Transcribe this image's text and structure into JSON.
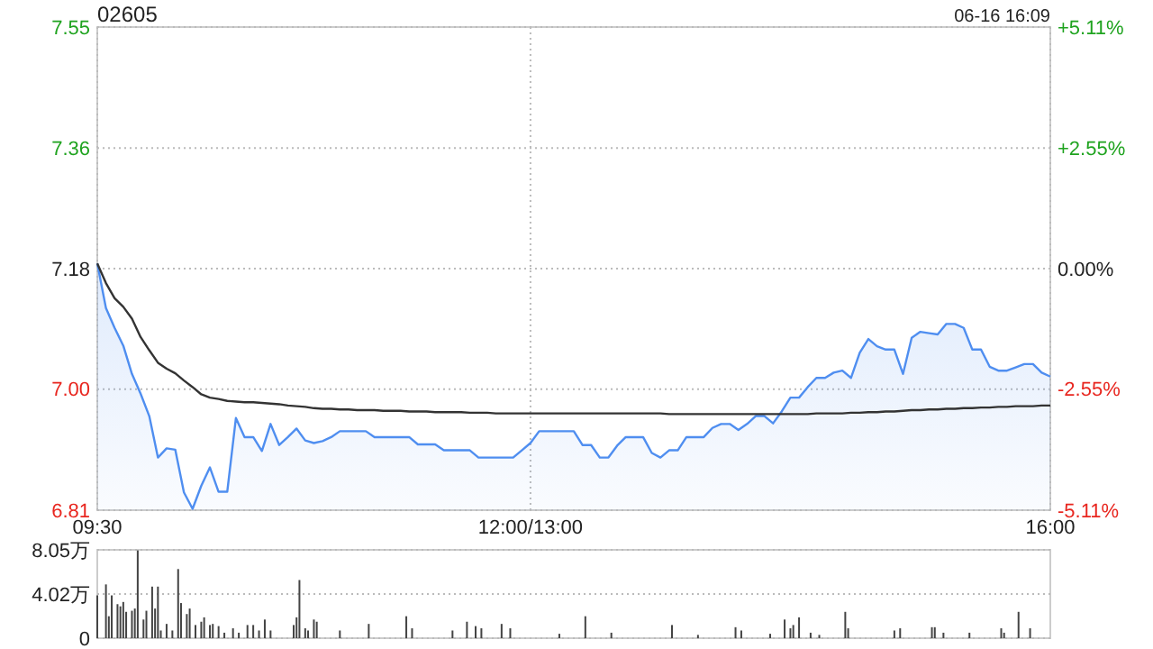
{
  "chart_data": [
    {
      "type": "line",
      "title": "02605",
      "annotations": [
        "06-16 16:09"
      ],
      "categories": [
        "09:30",
        null,
        null,
        null,
        null,
        null,
        null,
        null,
        null,
        null,
        null,
        null,
        null,
        null,
        null,
        null,
        null,
        null,
        null,
        null,
        null,
        null,
        null,
        null,
        null,
        null,
        null,
        null,
        null,
        null,
        null,
        null,
        null,
        null,
        null,
        null,
        null,
        null,
        null,
        null,
        null,
        null,
        null,
        null,
        null,
        null,
        null,
        null,
        null,
        null,
        "12:00/13:00",
        null,
        null,
        null,
        null,
        null,
        null,
        null,
        null,
        null,
        null,
        null,
        null,
        null,
        null,
        null,
        null,
        null,
        null,
        null,
        null,
        null,
        null,
        null,
        null,
        null,
        null,
        null,
        null,
        null,
        null,
        null,
        null,
        null,
        null,
        null,
        null,
        null,
        null,
        null,
        null,
        null,
        null,
        null,
        null,
        null,
        null,
        null,
        null,
        null,
        null,
        null,
        null,
        null,
        null,
        null,
        null,
        null,
        null,
        null,
        "16:00"
      ],
      "ylim": [
        6.813,
        7.547
      ],
      "yticks": [
        {
          "value": 6.813,
          "label": "6.81"
        },
        {
          "value": 6.997,
          "label": "7.00"
        },
        7.18,
        {
          "value": 7.363,
          "label": "7.36"
        },
        {
          "value": 7.547,
          "label": "7.55"
        }
      ],
      "y2lim": [
        -5.11,
        5.11
      ],
      "y2ticks": [
        {
          "value": -5.11,
          "label": "-5.11%"
        },
        {
          "value": -2.55,
          "label": "-2.55%"
        },
        {
          "value": 0,
          "label": "0.00%"
        },
        {
          "value": 2.55,
          "label": "+2.55%"
        },
        {
          "value": 5.11,
          "label": "+5.11%"
        }
      ],
      "grid": true,
      "series": [
        {
          "type": "area",
          "color": "#4f8ef0",
          "values": [
            7.188,
            7.12,
            7.09,
            7.063,
            7.02,
            6.99,
            6.956,
            6.893,
            6.907,
            6.905,
            6.84,
            6.815,
            6.85,
            6.878,
            6.841,
            6.841,
            6.953,
            6.924,
            6.924,
            6.903,
            6.944,
            6.912,
            6.924,
            6.937,
            6.919,
            6.915,
            6.918,
            6.924,
            6.933,
            6.933,
            6.933,
            6.933,
            6.924,
            6.924,
            6.924,
            6.924,
            6.924,
            6.913,
            6.913,
            6.913,
            6.904,
            6.904,
            6.904,
            6.904,
            6.893,
            6.893,
            6.893,
            6.893,
            6.893,
            6.904,
            6.915,
            6.933,
            6.933,
            6.933,
            6.933,
            6.933,
            6.912,
            6.912,
            6.893,
            6.893,
            6.911,
            6.924,
            6.924,
            6.924,
            6.9,
            6.893,
            6.904,
            6.904,
            6.924,
            6.924,
            6.924,
            6.938,
            6.944,
            6.944,
            6.935,
            6.944,
            6.956,
            6.956,
            6.945,
            6.963,
            6.984,
            6.984,
            7.0,
            7.014,
            7.014,
            7.022,
            7.025,
            7.014,
            7.052,
            7.073,
            7.062,
            7.057,
            7.057,
            7.02,
            7.075,
            7.084,
            7.082,
            7.08,
            7.096,
            7.096,
            7.09,
            7.057,
            7.057,
            7.031,
            7.025,
            7.025,
            7.03,
            7.035,
            7.035,
            7.022,
            7.016
          ]
        },
        {
          "type": "line",
          "color": "#333333",
          "values": [
            7.188,
            7.158,
            7.135,
            7.122,
            7.104,
            7.076,
            7.056,
            7.037,
            7.028,
            7.021,
            7.01,
            7.0,
            6.989,
            6.984,
            6.982,
            6.979,
            6.978,
            6.977,
            6.977,
            6.976,
            6.975,
            6.974,
            6.972,
            6.971,
            6.97,
            6.968,
            6.967,
            6.967,
            6.966,
            6.966,
            6.965,
            6.965,
            6.965,
            6.964,
            6.964,
            6.964,
            6.963,
            6.963,
            6.963,
            6.962,
            6.962,
            6.962,
            6.962,
            6.961,
            6.961,
            6.961,
            6.96,
            6.96,
            6.96,
            6.96,
            6.96,
            6.96,
            6.96,
            6.96,
            6.96,
            6.96,
            6.96,
            6.96,
            6.96,
            6.96,
            6.96,
            6.96,
            6.96,
            6.96,
            6.96,
            6.96,
            6.959,
            6.959,
            6.959,
            6.959,
            6.959,
            6.959,
            6.959,
            6.959,
            6.959,
            6.959,
            6.959,
            6.959,
            6.959,
            6.959,
            6.959,
            6.959,
            6.959,
            6.96,
            6.96,
            6.96,
            6.96,
            6.961,
            6.961,
            6.962,
            6.962,
            6.963,
            6.963,
            6.964,
            6.965,
            6.965,
            6.966,
            6.966,
            6.967,
            6.967,
            6.968,
            6.968,
            6.969,
            6.969,
            6.97,
            6.97,
            6.971,
            6.971,
            6.971,
            6.972,
            6.972
          ]
        }
      ]
    },
    {
      "type": "bar",
      "color": "#444444",
      "ylim": [
        0,
        8.05
      ],
      "yticks": [
        0,
        {
          "value": 4.02,
          "label": "4.02万"
        },
        {
          "value": 8.05,
          "label": "8.05万"
        }
      ],
      "grid": "y",
      "tick_labels": "y",
      "categories": [
        null,
        null,
        null,
        null,
        null,
        null,
        null,
        null,
        null,
        null,
        null,
        null,
        null,
        null,
        null,
        null,
        null,
        null,
        null,
        null,
        null,
        null,
        null,
        null,
        null,
        null,
        null,
        null,
        null,
        null,
        null,
        null,
        null,
        null,
        null,
        null,
        null,
        null,
        null,
        null,
        null,
        null,
        null,
        null,
        null,
        null,
        null,
        null,
        null,
        null,
        null,
        null,
        null,
        null,
        null,
        null,
        null,
        null,
        null,
        null,
        null,
        null,
        null,
        null,
        null,
        null,
        null,
        null,
        null,
        null,
        null,
        null,
        null,
        null,
        null,
        null,
        null,
        null,
        null,
        null,
        null,
        null,
        null,
        null,
        null,
        null,
        null,
        null,
        null,
        null,
        null,
        null,
        null,
        null,
        null,
        null,
        null,
        null,
        null,
        null,
        null,
        null,
        null,
        null,
        null,
        null,
        null,
        null,
        null,
        null,
        null,
        null,
        null,
        null,
        null,
        null,
        null,
        null,
        null,
        null,
        null,
        null,
        null,
        null,
        null,
        null,
        null,
        null,
        null,
        null,
        null,
        null,
        null,
        null,
        null,
        null,
        null,
        null,
        null,
        null,
        null,
        null,
        null,
        null,
        null,
        null,
        null,
        null,
        null,
        null,
        null,
        null,
        null,
        null,
        null,
        null,
        null,
        null,
        null,
        null,
        null,
        null,
        null,
        null,
        null,
        null,
        null,
        null,
        null,
        null,
        null,
        null,
        null,
        null,
        null,
        null,
        null,
        null,
        null,
        null,
        null,
        null,
        null,
        null,
        null,
        null,
        null,
        null,
        null,
        null,
        null,
        null,
        null,
        null,
        null,
        null,
        null,
        null,
        null,
        null,
        null,
        null,
        null,
        null,
        null,
        null,
        null,
        null,
        null,
        null,
        null,
        null,
        null,
        null,
        null,
        null,
        null,
        null,
        null,
        null,
        null,
        null,
        null,
        null,
        null,
        null,
        null,
        null,
        null,
        null,
        null,
        null,
        null,
        null,
        null,
        null,
        null,
        null,
        null,
        null,
        null,
        null,
        null,
        null,
        null,
        null,
        null,
        null,
        null,
        null,
        null,
        null,
        null,
        null,
        null,
        null,
        null,
        null,
        null,
        null,
        null,
        null,
        null,
        null,
        null,
        null,
        null,
        null,
        null,
        null,
        null,
        null,
        null,
        null,
        null,
        null,
        null,
        null,
        null,
        null,
        null,
        null,
        null,
        null,
        null,
        null,
        null,
        null,
        null,
        null,
        null,
        null,
        null,
        null,
        null,
        null,
        null,
        null,
        null,
        null,
        null,
        null,
        null,
        null,
        null,
        null,
        null,
        null,
        null,
        null,
        null,
        null,
        null,
        null,
        null,
        null,
        null,
        null,
        null,
        null,
        null,
        null,
        null,
        null,
        null,
        null,
        null,
        null,
        null,
        null,
        null
      ],
      "values": [
        3.9,
        null,
        null,
        4.9,
        2.0,
        3.9,
        null,
        3.1,
        2.9,
        3.3,
        2.4,
        null,
        2.5,
        2.7,
        8.0,
        null,
        1.7,
        2.5,
        null,
        4.7,
        2.7,
        4.7,
        0.7,
        null,
        1.3,
        null,
        0.7,
        null,
        6.3,
        3.2,
        null,
        2.2,
        2.7,
        null,
        1.2,
        null,
        1.5,
        1.9,
        null,
        1.2,
        1.3,
        null,
        1.1,
        null,
        0.5,
        null,
        null,
        0.9,
        null,
        0.5,
        null,
        null,
        1.2,
        null,
        1.2,
        null,
        0.7,
        null,
        1.7,
        null,
        0.7,
        null,
        null,
        null,
        null,
        null,
        null,
        null,
        1.2,
        1.9,
        5.3,
        null,
        0.9,
        0.7,
        null,
        1.7,
        1.5,
        null,
        null,
        null,
        null,
        null,
        null,
        null,
        0.7,
        null,
        null,
        null,
        null,
        null,
        null,
        null,
        null,
        null,
        1.3,
        null,
        null,
        null,
        null,
        null,
        null,
        null,
        null,
        null,
        null,
        null,
        null,
        2.0,
        null,
        0.9,
        null,
        null,
        null,
        null,
        null,
        null,
        null,
        null,
        null,
        null,
        null,
        null,
        null,
        0.7,
        null,
        null,
        null,
        null,
        1.5,
        null,
        null,
        1.1,
        null,
        0.9,
        null,
        null,
        null,
        null,
        null,
        null,
        1.3,
        null,
        null,
        0.9,
        null,
        null,
        null,
        null,
        null,
        null,
        null,
        null,
        null,
        null,
        null,
        null,
        null,
        null,
        null,
        null,
        0.4,
        null,
        null,
        null,
        null,
        null,
        null,
        null,
        null,
        2.0,
        null,
        null,
        null,
        null,
        null,
        null,
        null,
        null,
        0.5,
        null,
        null,
        null,
        null,
        null,
        null,
        null,
        null,
        null,
        null,
        null,
        null,
        null,
        null,
        null,
        null,
        null,
        null,
        null,
        null,
        1.2,
        null,
        null,
        null,
        null,
        null,
        null,
        null,
        null,
        0.3,
        null,
        null,
        null,
        null,
        null,
        null,
        null,
        null,
        null,
        null,
        null,
        null,
        1.0,
        null,
        0.7,
        null,
        null,
        null,
        null,
        null,
        null,
        null,
        null,
        null,
        0.4,
        null,
        null,
        null,
        null,
        1.7,
        null,
        0.9,
        1.2,
        null,
        1.9,
        null,
        null,
        null,
        0.5,
        null,
        null,
        0.3,
        null,
        null,
        null,
        null,
        null,
        null,
        null,
        null,
        2.4,
        0.9,
        null,
        null,
        null,
        null,
        null,
        null,
        null,
        null,
        null,
        null,
        null,
        null,
        null,
        null,
        null,
        0.7,
        null,
        0.9,
        null,
        null,
        null,
        null,
        null,
        null,
        null,
        null,
        null,
        null,
        1.0,
        1.0,
        null,
        null,
        0.5,
        null,
        null,
        null,
        null,
        null,
        null,
        null,
        null,
        0.5,
        null,
        null,
        null,
        null,
        null,
        null,
        null,
        null,
        null,
        null,
        0.9,
        0.5,
        null,
        null,
        null,
        null,
        2.4,
        null,
        null,
        null,
        0.9,
        null,
        null,
        null,
        null,
        null,
        null,
        null
      ]
    }
  ]
}
